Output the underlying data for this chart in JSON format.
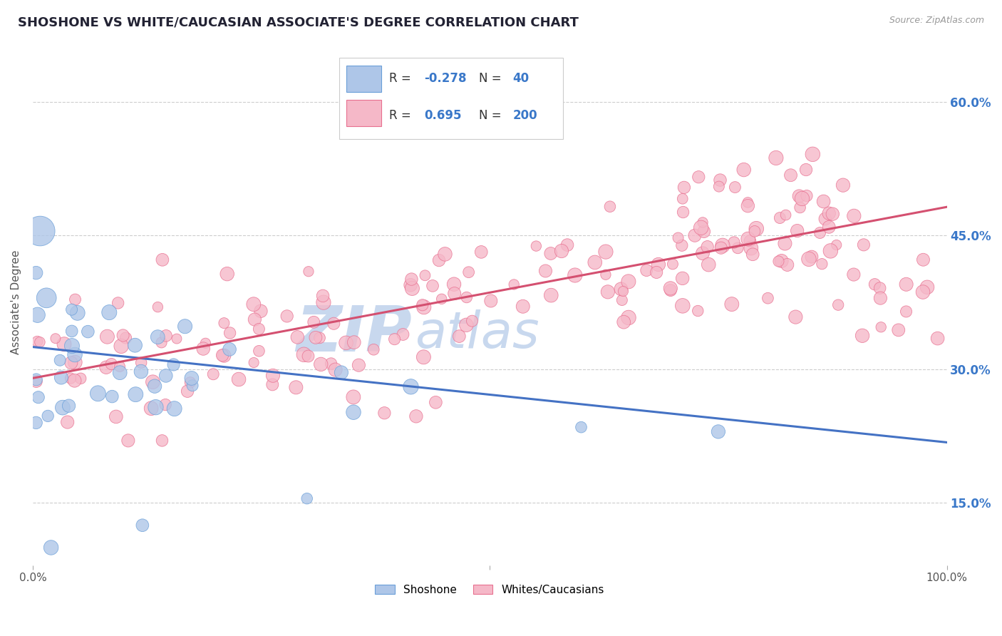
{
  "title": "SHOSHONE VS WHITE/CAUCASIAN ASSOCIATE'S DEGREE CORRELATION CHART",
  "source": "Source: ZipAtlas.com",
  "ylabel": "Associate's Degree",
  "xlim": [
    0.0,
    1.0
  ],
  "ylim": [
    0.08,
    0.67
  ],
  "yticks": [
    0.15,
    0.3,
    0.45,
    0.6
  ],
  "ytick_labels": [
    "15.0%",
    "30.0%",
    "45.0%",
    "60.0%"
  ],
  "blue_R": -0.278,
  "blue_N": 40,
  "pink_R": 0.695,
  "pink_N": 200,
  "blue_scatter_color": "#aec6e8",
  "pink_scatter_color": "#f5b8c8",
  "blue_edge_color": "#6a9fd8",
  "pink_edge_color": "#e87090",
  "blue_line_color": "#4472c4",
  "pink_line_color": "#d45070",
  "blue_line_start_y": 0.325,
  "blue_line_end_y": 0.218,
  "pink_line_start_y": 0.29,
  "pink_line_end_y": 0.482,
  "watermark_zip": "ZIP",
  "watermark_atlas": "atlas",
  "watermark_color": "#c8d8ee",
  "legend_label_blue": "Shoshone",
  "legend_label_pink": "Whites/Caucasians",
  "background_color": "#ffffff",
  "grid_color": "#c8c8c8",
  "title_color": "#222233",
  "title_fontsize": 13,
  "axis_label_fontsize": 11,
  "tick_fontsize": 10,
  "right_ytick_color": "#3a78c9",
  "legend_text_color": "#3a78c9"
}
